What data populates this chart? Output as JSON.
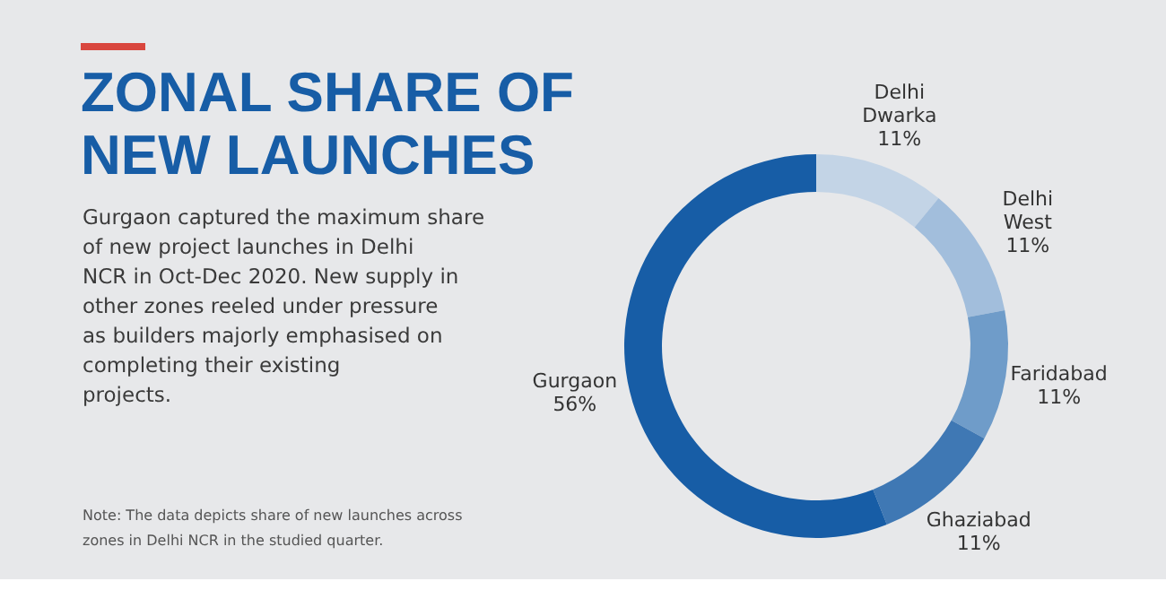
{
  "chart_data": {
    "type": "donut",
    "title": "ZONAL SHARE OF NEW LAUNCHES",
    "subtitle": "Gurgaon captured the maximum share of new project launches in Delhi NCR in Oct-Dec 2020. New supply in other zones reeled under pressure as builders majorly emphasised on completing their existing projects.",
    "annotations": [
      "Note: The data depicts share of new launches across zones in Delhi NCR in the studied quarter."
    ],
    "categories": [
      "Delhi Dwarka",
      "Delhi West",
      "Faridabad",
      "Ghaziabad",
      "Gurgaon"
    ],
    "values": [
      11,
      11,
      11,
      11,
      56
    ],
    "value_labels": [
      "11%",
      "11%",
      "11%",
      "11%",
      "56%"
    ],
    "colors": [
      "#c3d4e6",
      "#a2bedc",
      "#6f9cc9",
      "#3f78b4",
      "#175da6"
    ],
    "legend": false
  }
}
